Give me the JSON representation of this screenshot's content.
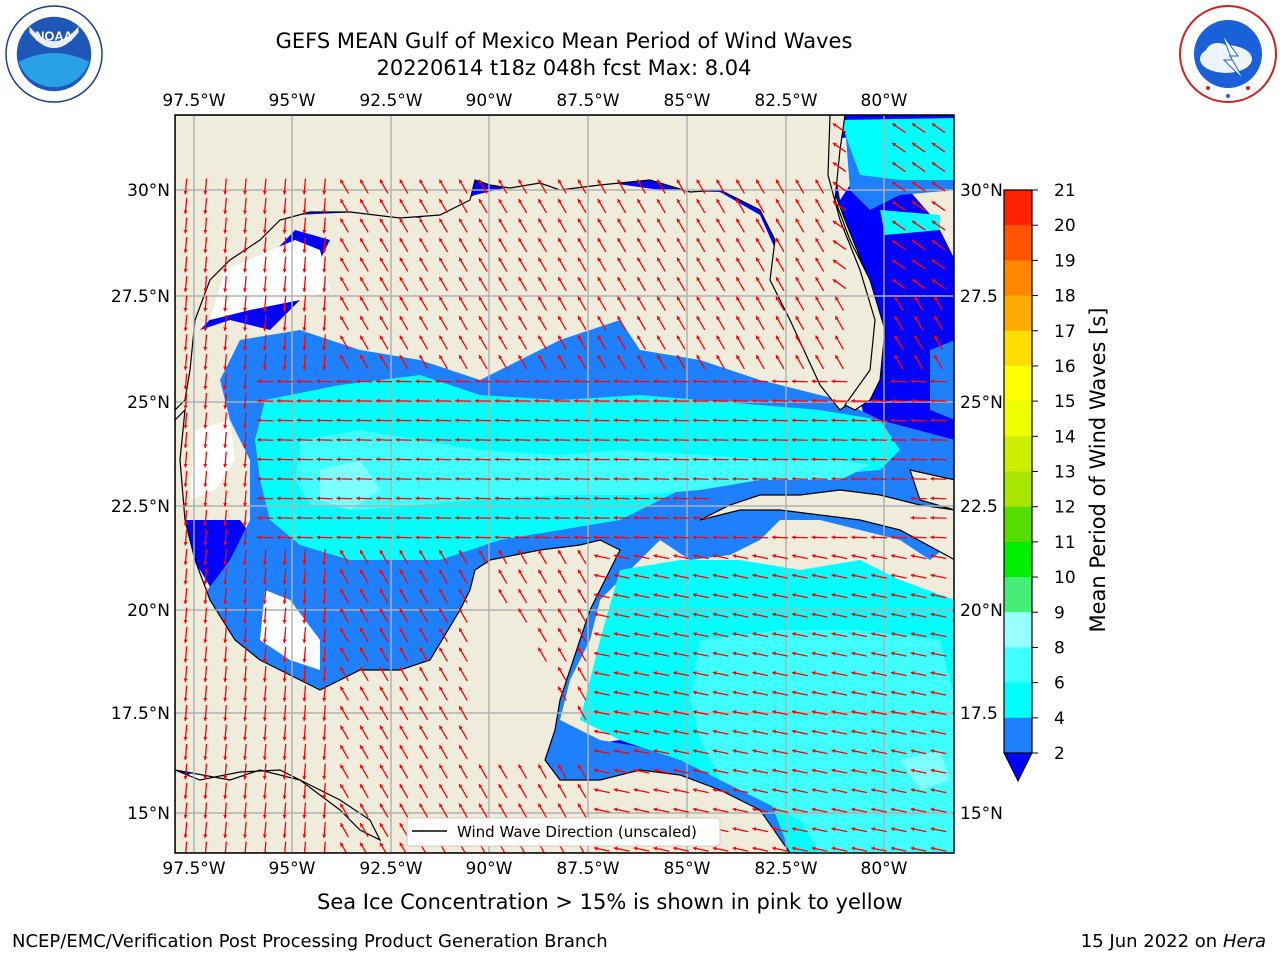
{
  "header": {
    "title": "GEFS MEAN Gulf of Mexico Mean Period of Wind Waves",
    "subtitle": "20220614 t18z 048h fcst   Max: 8.04"
  },
  "logos": {
    "left": {
      "icon": "noaa-logo",
      "text": "NOAA"
    },
    "right": {
      "icon": "nws-logo",
      "text": "NATIONAL WEATHER SERVICE"
    }
  },
  "map": {
    "lon_labels": [
      "97.5°W",
      "95°W",
      "92.5°W",
      "90°W",
      "87.5°W",
      "85°W",
      "82.5°W",
      "80°W"
    ],
    "lat_labels_left": [
      "30°N",
      "27.5°N",
      "25°N",
      "22.5°N",
      "20°N",
      "17.5°N",
      "15°N"
    ],
    "lat_labels_right": [
      "30°N",
      "27.5",
      "25°N",
      "22.5",
      "20°N",
      "17.5",
      "15°N"
    ],
    "legend_text": "Wind Wave Direction (unscaled)",
    "land_color": "#efecdc",
    "arrow_color": "#ff0000",
    "grid_color": "#b0b0b0"
  },
  "colorbar": {
    "label": "Mean Period of Wind Waves [s]",
    "ticks": [
      "2",
      "4",
      "6",
      "8",
      "9",
      "10",
      "11",
      "12",
      "13",
      "14",
      "15",
      "16",
      "17",
      "18",
      "19",
      "20",
      "21"
    ],
    "colors": [
      "#0000ff",
      "#1e7fff",
      "#00ffff",
      "#40ffff",
      "#99ffff",
      "#44ee77",
      "#00ee00",
      "#55dd00",
      "#a8e600",
      "#ccee00",
      "#eeff00",
      "#ffff00",
      "#ffdd00",
      "#ffaa00",
      "#ff8800",
      "#ff5500",
      "#ff2200",
      "#ff0000"
    ]
  },
  "footer": {
    "ice_note": "Sea Ice Concentration > 15% is shown in pink to yellow",
    "credit": "NCEP/EMC/Verification Post Processing Product Generation Branch",
    "date": "15 Jun 2022 on",
    "machine": "Hera"
  }
}
